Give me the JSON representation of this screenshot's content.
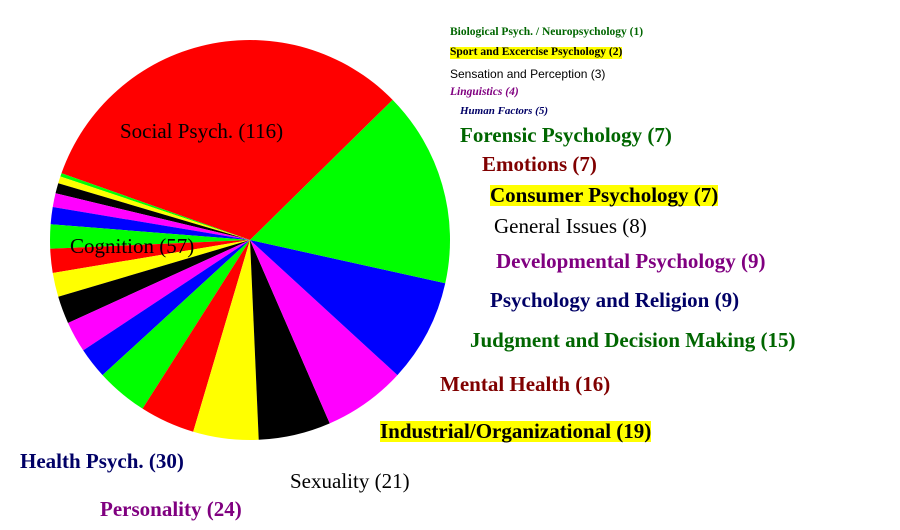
{
  "chart_data": {
    "type": "pie",
    "slices": [
      {
        "label": "Social Psych. (116)",
        "value": 116,
        "color": "#ff0000"
      },
      {
        "label": "Biological Psych. / Neuropsychology (1)",
        "value": 1,
        "color": "#00ff00"
      },
      {
        "label": "Sport and Excercise Psychology (2)",
        "value": 2,
        "color": "#ffff00"
      },
      {
        "label": "Sensation and Perception (3)",
        "value": 3,
        "color": "#000000"
      },
      {
        "label": "Linguistics (4)",
        "value": 4,
        "color": "#ff00ff"
      },
      {
        "label": "Human Factors (5)",
        "value": 5,
        "color": "#0000ff"
      },
      {
        "label": "Forensic Psychology (7)",
        "value": 7,
        "color": "#00ff00"
      },
      {
        "label": "Emotions (7)",
        "value": 7,
        "color": "#ff0000"
      },
      {
        "label": "Consumer Psychology (7)",
        "value": 7,
        "color": "#ffff00"
      },
      {
        "label": "General Issues (8)",
        "value": 8,
        "color": "#000000"
      },
      {
        "label": "Developmental Psychology (9)",
        "value": 9,
        "color": "#ff00ff"
      },
      {
        "label": "Psychology and Religion (9)",
        "value": 9,
        "color": "#0000ff"
      },
      {
        "label": "Judgment and Decision Making (15)",
        "value": 15,
        "color": "#00ff00"
      },
      {
        "label": "Mental Health (16)",
        "value": 16,
        "color": "#ff0000"
      },
      {
        "label": "Industrial/Organizational (19)",
        "value": 19,
        "color": "#ffff00"
      },
      {
        "label": "Sexuality (21)",
        "value": 21,
        "color": "#000000"
      },
      {
        "label": "Personality (24)",
        "value": 24,
        "color": "#ff00ff"
      },
      {
        "label": "Health Psych. (30)",
        "value": 30,
        "color": "#0000ff"
      },
      {
        "label": "Cognition (57)",
        "value": 57,
        "color": "#00ff00"
      }
    ]
  },
  "text_colors": {
    "green": "#006600",
    "yellow": "#ffff00",
    "black": "#000000",
    "purple": "#800080",
    "navy": "#000066",
    "darkred": "#800000"
  }
}
